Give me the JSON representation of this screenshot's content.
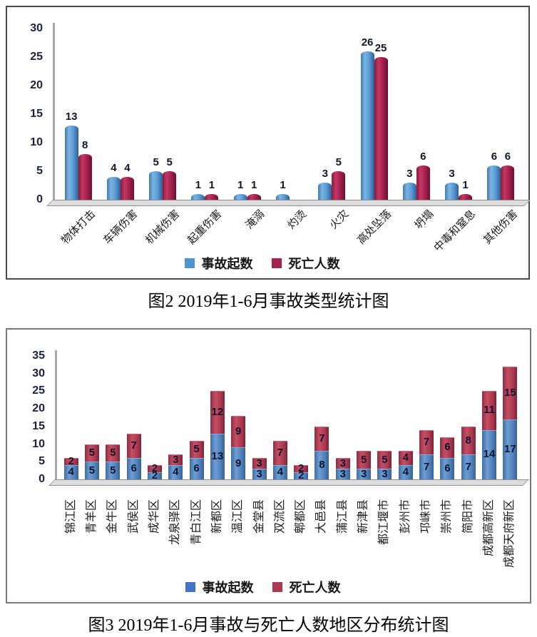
{
  "captions": {
    "fig2": "图2 2019年1-6月事故类型统计图",
    "fig3": "图3 2019年1-6月事故与死亡人数地区分布统计图"
  },
  "colors": {
    "accidents_top_chart": "#5b9bd5",
    "deaths_top_chart": "#a5214e",
    "accidents_bottom_chart": "#4f81bd",
    "deaths_bottom_chart": "#ab3950",
    "axis_tick_label": "#1c2140",
    "value_label": "#11152e"
  },
  "chart_data": [
    {
      "type": "bar",
      "stacked": false,
      "title": "图2 2019年1-6月事故类型统计图",
      "categories": [
        "物体打击",
        "车辆伤害",
        "机械伤害",
        "起重伤害",
        "淹溺",
        "灼烫",
        "火灾",
        "高处坠落",
        "坍塌",
        "中毒和窒息",
        "其他伤害"
      ],
      "series": [
        {
          "name": "事故起数",
          "values": [
            13,
            4,
            5,
            1,
            1,
            1,
            3,
            26,
            3,
            3,
            6
          ]
        },
        {
          "name": "死亡人数",
          "values": [
            8,
            4,
            5,
            1,
            1,
            0,
            5,
            25,
            6,
            1,
            6
          ]
        }
      ],
      "xlabel": "",
      "ylabel": "",
      "ylim": [
        0,
        30
      ],
      "ytick_step": 5,
      "grid": false,
      "legend_position": "bottom"
    },
    {
      "type": "bar",
      "stacked": true,
      "title": "图3 2019年1-6月事故与死亡人数地区分布统计图",
      "categories": [
        "锦江区",
        "青羊区",
        "金牛区",
        "武侯区",
        "成华区",
        "龙泉驿区",
        "青白江区",
        "新都区",
        "温江区",
        "金堂县",
        "双流区",
        "郫都区",
        "大邑县",
        "蒲江县",
        "新津县",
        "都江堰市",
        "彭州市",
        "邛崃市",
        "崇州市",
        "简阳市",
        "成都高新区",
        "成都天府新区"
      ],
      "series": [
        {
          "name": "事故起数",
          "values": [
            4,
            5,
            5,
            6,
            2,
            4,
            6,
            13,
            9,
            3,
            4,
            2,
            8,
            3,
            3,
            3,
            4,
            7,
            6,
            7,
            14,
            17
          ]
        },
        {
          "name": "死亡人数",
          "values": [
            2,
            5,
            5,
            7,
            2,
            3,
            5,
            12,
            9,
            3,
            7,
            2,
            7,
            3,
            5,
            5,
            4,
            7,
            6,
            8,
            11,
            15
          ]
        }
      ],
      "xlabel": "",
      "ylabel": "",
      "ylim": [
        0,
        35
      ],
      "ytick_step": 5,
      "grid": false,
      "legend_position": "bottom"
    }
  ]
}
